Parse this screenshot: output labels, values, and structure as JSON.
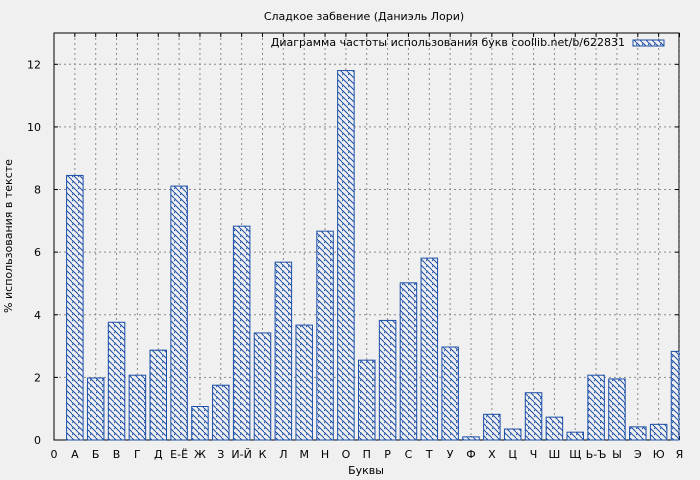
{
  "chart_data": {
    "type": "bar",
    "title": "Сладкое забвение (Даниэль Лори)",
    "xlabel": "Буквы",
    "ylabel": "% использования в тексте",
    "legend": "Диаграмма частоты использования букв coollib.net/b/622831",
    "legend_position": "top-right",
    "grid": true,
    "ylim": [
      0,
      13
    ],
    "yticks": [
      0,
      2,
      4,
      6,
      8,
      10,
      12
    ],
    "x_start_label": "0",
    "categories": [
      "А",
      "Б",
      "В",
      "Г",
      "Д",
      "Е-Ё",
      "Ж",
      "З",
      "И-Й",
      "К",
      "Л",
      "М",
      "Н",
      "О",
      "П",
      "Р",
      "С",
      "Т",
      "У",
      "Ф",
      "Х",
      "Ц",
      "Ч",
      "Ш",
      "Щ",
      "Ь-Ъ",
      "Ы",
      "Э",
      "Ю",
      "Я"
    ],
    "values": [
      8.45,
      1.98,
      3.76,
      2.07,
      2.87,
      8.11,
      1.07,
      1.75,
      6.83,
      3.42,
      5.68,
      3.67,
      6.67,
      11.8,
      2.55,
      3.82,
      5.02,
      5.81,
      2.97,
      0.1,
      0.82,
      0.35,
      1.51,
      0.73,
      0.25,
      2.07,
      1.95,
      0.42,
      0.5,
      2.83
    ],
    "colors": {
      "bar_stroke": "#1c4fa8",
      "hatch": "#1c4fa8",
      "grid": "#8a8a8a",
      "plot_bg": "#f0f0f0"
    }
  }
}
